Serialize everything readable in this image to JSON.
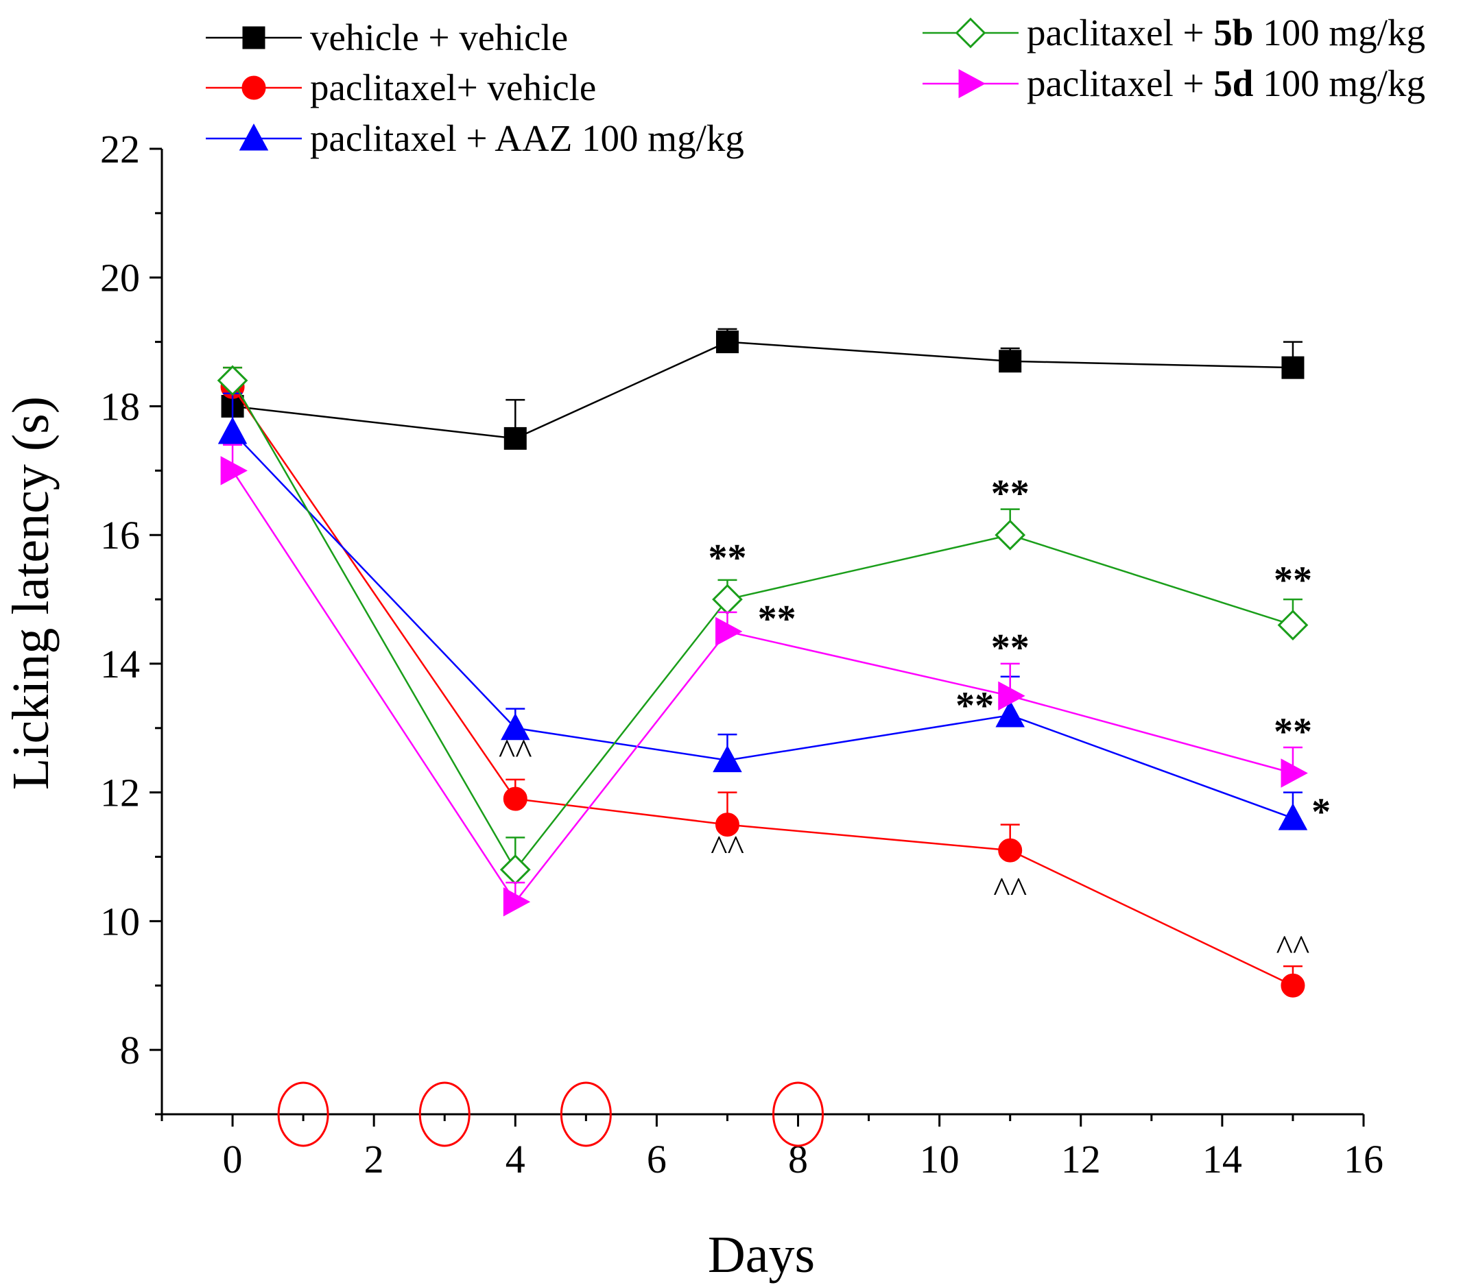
{
  "chart_data": {
    "type": "line",
    "title": "",
    "xlabel": "Days",
    "ylabel": "Licking latency (s)",
    "xlim": [
      -1,
      16
    ],
    "ylim": [
      7,
      22
    ],
    "xticks": [
      0,
      2,
      4,
      6,
      8,
      10,
      12,
      14,
      16
    ],
    "yticks": [
      8,
      10,
      12,
      14,
      16,
      18,
      20,
      22
    ],
    "x": [
      0,
      4,
      7,
      11,
      15
    ],
    "series": [
      {
        "name": "vehicle + vehicle",
        "name_parts": [
          "vehicle + vehicle"
        ],
        "color": "#000000",
        "marker": "square",
        "filled": true,
        "values": [
          18.0,
          17.5,
          19.0,
          18.7,
          18.6
        ],
        "errors": [
          0.2,
          0.6,
          0.2,
          0.2,
          0.4
        ]
      },
      {
        "name": "paclitaxel+ vehicle",
        "name_parts": [
          "paclitaxel+ vehicle"
        ],
        "color": "#ff0000",
        "marker": "circle",
        "filled": true,
        "values": [
          18.3,
          11.9,
          11.5,
          11.1,
          9.0
        ],
        "errors": [
          0.3,
          0.3,
          0.5,
          0.4,
          0.3
        ]
      },
      {
        "name": "paclitaxel + AAZ 100 mg/kg",
        "name_parts": [
          "paclitaxel + AAZ 100 mg/kg"
        ],
        "color": "#0000ff",
        "marker": "triangle-up",
        "filled": true,
        "values": [
          17.6,
          13.0,
          12.5,
          13.2,
          11.6
        ],
        "errors": [
          0.6,
          0.3,
          0.4,
          0.6,
          0.4
        ]
      },
      {
        "name": "paclitaxel + 5b 100 mg/kg",
        "name_parts": [
          "paclitaxel + ",
          "5b",
          " 100 mg/kg"
        ],
        "color": "#1a9e1a",
        "marker": "diamond",
        "filled": false,
        "values": [
          18.4,
          10.8,
          15.0,
          16.0,
          14.6
        ],
        "errors": [
          0.2,
          0.5,
          0.3,
          0.4,
          0.4
        ]
      },
      {
        "name": "paclitaxel + 5d 100 mg/kg",
        "name_parts": [
          "paclitaxel + ",
          "5d",
          " 100 mg/kg"
        ],
        "color": "#ff00ff",
        "marker": "triangle-right",
        "filled": true,
        "values": [
          17.0,
          10.3,
          14.5,
          13.5,
          12.3
        ],
        "errors": [
          0.4,
          0.3,
          0.3,
          0.5,
          0.4
        ]
      }
    ],
    "annotations": [
      {
        "text": "^^",
        "x": 4,
        "y": 12.45,
        "color": "#000000",
        "style": "caret"
      },
      {
        "text": "^^",
        "x": 7,
        "y": 10.95,
        "color": "#000000",
        "style": "caret"
      },
      {
        "text": "^^",
        "x": 11,
        "y": 10.3,
        "color": "#000000",
        "style": "caret"
      },
      {
        "text": "^^",
        "x": 15,
        "y": 9.4,
        "color": "#000000",
        "style": "caret"
      },
      {
        "text": "**",
        "x": 7,
        "y": 15.45,
        "color": "#000000",
        "style": "star"
      },
      {
        "text": "**",
        "x": 7.7,
        "y": 14.5,
        "color": "#000000",
        "style": "star"
      },
      {
        "text": "**",
        "x": 11,
        "y": 16.45,
        "color": "#000000",
        "style": "star"
      },
      {
        "text": "**",
        "x": 11,
        "y": 14.05,
        "color": "#000000",
        "style": "star"
      },
      {
        "text": "**",
        "x": 10.5,
        "y": 13.15,
        "color": "#000000",
        "style": "star"
      },
      {
        "text": "**",
        "x": 15,
        "y": 15.1,
        "color": "#000000",
        "style": "star"
      },
      {
        "text": "**",
        "x": 15,
        "y": 12.75,
        "color": "#000000",
        "style": "star"
      },
      {
        "text": "*",
        "x": 15.4,
        "y": 11.5,
        "color": "#000000",
        "style": "star"
      }
    ],
    "dosing_days": [
      1,
      3,
      5,
      8
    ],
    "dosing_marker_color": "#ff0000",
    "legend": "top",
    "grid": false
  }
}
